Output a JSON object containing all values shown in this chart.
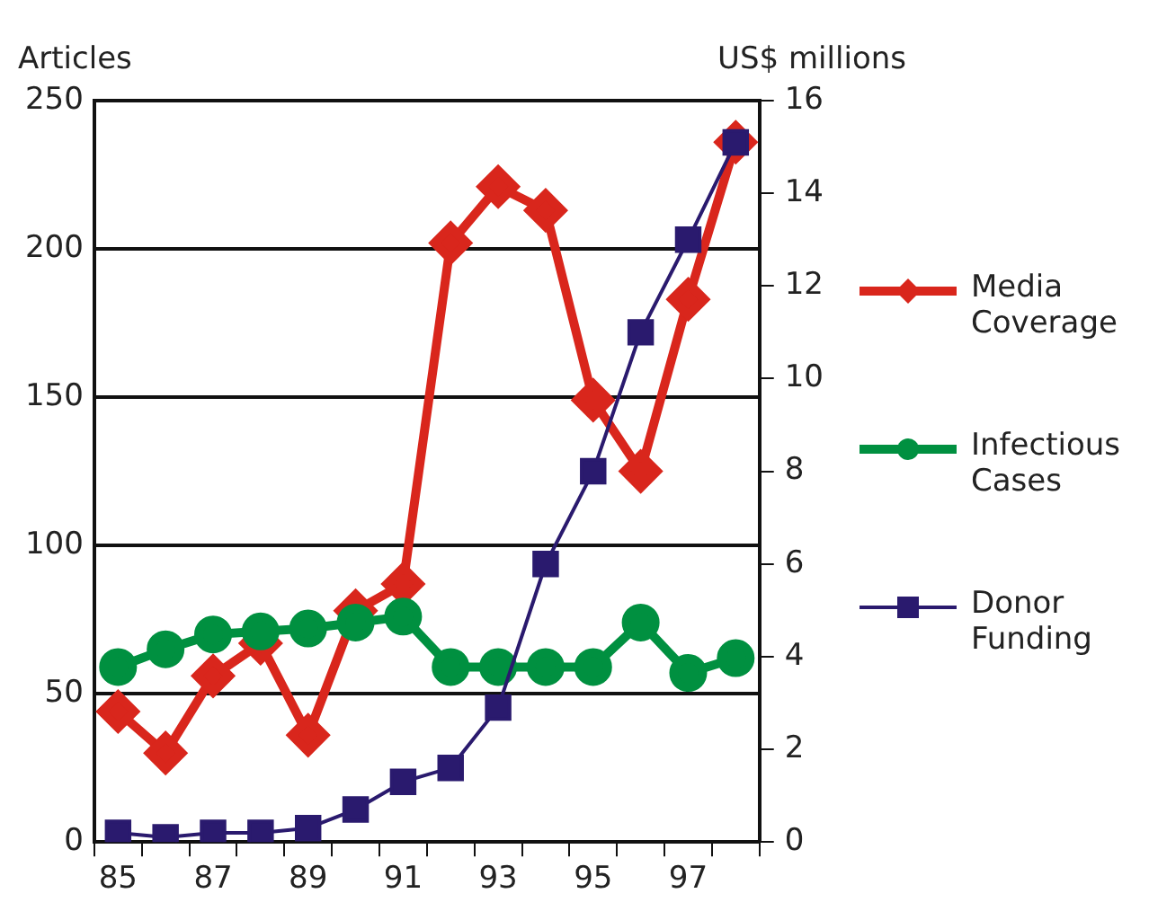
{
  "chart_data": {
    "type": "line",
    "ylabel": "Articles",
    "y2label": "US$ millions",
    "categories": [
      "85",
      null,
      "87",
      null,
      "89",
      null,
      "91",
      null,
      "93",
      null,
      "95",
      null,
      "97",
      null
    ],
    "series": [
      {
        "name": "Media Coverage",
        "color": "#d9261c",
        "marker": "diamond",
        "values": [
          44,
          30,
          56,
          67,
          36,
          78,
          87,
          202,
          221,
          213,
          149,
          125,
          183,
          236
        ]
      },
      {
        "name": "Infectious Cases",
        "color": "#009040",
        "marker": "circle",
        "values": [
          59,
          65,
          70,
          71,
          72,
          74,
          76,
          59,
          59,
          59,
          59,
          74,
          57,
          62
        ]
      },
      {
        "name": "Donor Funding",
        "color": "#2a1a6e",
        "marker": "square",
        "axis": "y2",
        "values": [
          0.2,
          0.1,
          0.2,
          0.2,
          0.3,
          0.7,
          1.3,
          1.6,
          2.9,
          6.0,
          8.0,
          11.0,
          13.0,
          15.1
        ]
      }
    ],
    "ylim": [
      0,
      250
    ],
    "yticks": [
      0,
      50,
      100,
      150,
      200,
      250
    ],
    "y2lim": [
      0,
      16
    ],
    "y2ticks": [
      0,
      2,
      4,
      6,
      8,
      10,
      12,
      14,
      16
    ],
    "grid": "y",
    "legend": "right"
  }
}
